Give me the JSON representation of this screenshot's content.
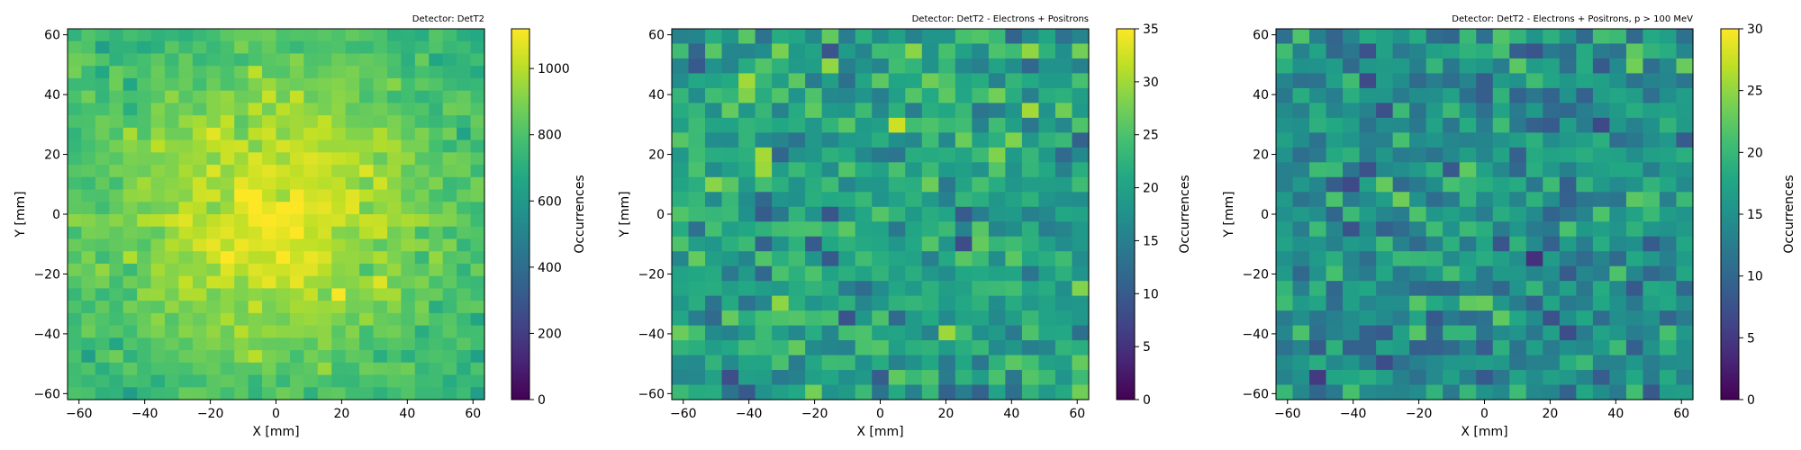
{
  "chart_data": [
    {
      "type": "heatmap",
      "title": "Detector: DetT2",
      "xlabel": "X [mm]",
      "ylabel": "Y [mm]",
      "colorbar_label": "Occurrences",
      "colormap": "viridis",
      "xlim": [
        -63.5,
        63.5
      ],
      "ylim": [
        -62,
        62
      ],
      "x_ticks": [
        -60,
        -40,
        -20,
        0,
        20,
        40,
        60
      ],
      "y_ticks": [
        -60,
        -40,
        -20,
        0,
        20,
        40,
        60
      ],
      "vmin": 0,
      "vmax": 1120,
      "colorbar_ticks": [
        0,
        200,
        400,
        600,
        800,
        1000
      ],
      "bins": [
        30,
        30
      ],
      "pattern": "gaussian",
      "base": 720,
      "peak": 1080,
      "noise": 90,
      "seed": 11
    },
    {
      "type": "heatmap",
      "title": "Detector: DetT2 - Electrons + Positrons",
      "xlabel": "X [mm]",
      "ylabel": "Y [mm]",
      "colorbar_label": "Occurrences",
      "colormap": "viridis",
      "xlim": [
        -63.5,
        63.5
      ],
      "ylim": [
        -62,
        62
      ],
      "x_ticks": [
        -60,
        -40,
        -20,
        0,
        20,
        40,
        60
      ],
      "y_ticks": [
        -60,
        -40,
        -20,
        0,
        20,
        40,
        60
      ],
      "vmin": 0,
      "vmax": 35,
      "colorbar_ticks": [
        0,
        5,
        10,
        15,
        20,
        25,
        30,
        35
      ],
      "bins": [
        25,
        25
      ],
      "pattern": "noise",
      "base": 20,
      "peak": 20,
      "noise": 4,
      "seed": 23
    },
    {
      "type": "heatmap",
      "title": "Detector: DetT2 - Electrons + Positrons, p > 100 MeV",
      "xlabel": "X [mm]",
      "ylabel": "Y [mm]",
      "colorbar_label": "Occurrences",
      "colormap": "viridis",
      "xlim": [
        -63.5,
        63.5
      ],
      "ylim": [
        -62,
        62
      ],
      "x_ticks": [
        -60,
        -40,
        -20,
        0,
        20,
        40,
        60
      ],
      "y_ticks": [
        -60,
        -40,
        -20,
        0,
        20,
        40,
        60
      ],
      "vmin": 0,
      "vmax": 30,
      "colorbar_ticks": [
        0,
        5,
        10,
        15,
        20,
        25,
        30
      ],
      "bins": [
        25,
        25
      ],
      "pattern": "noise",
      "base": 15,
      "peak": 15,
      "noise": 3.5,
      "seed": 37
    }
  ]
}
